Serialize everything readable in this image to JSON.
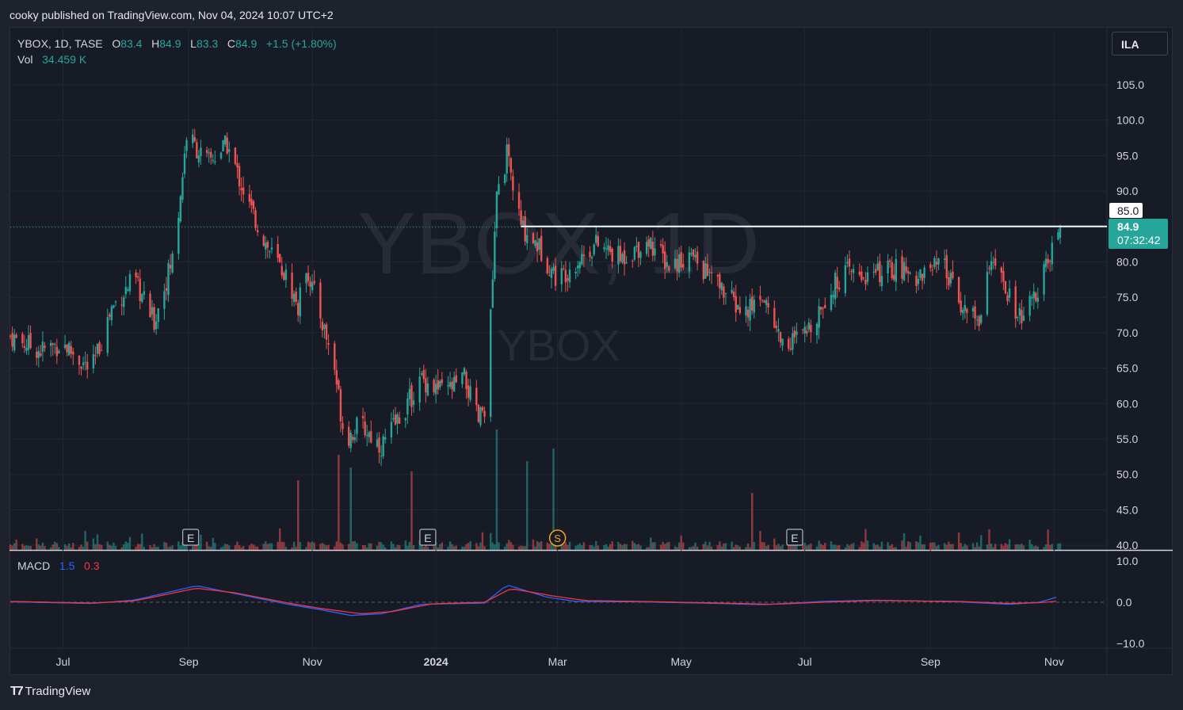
{
  "header": {
    "published": "cooky published on TradingView.com, Nov 04, 2024 10:07 UTC+2"
  },
  "legend": {
    "symbol": "YBOX, 1D, TASE",
    "open_label": "O",
    "open": "83.4",
    "high_label": "H",
    "high": "84.9",
    "low_label": "L",
    "low": "83.3",
    "close_label": "C",
    "close": "84.9",
    "change": "+1.5 (+1.80%)",
    "vol_label": "Vol",
    "vol": "34.459 K"
  },
  "currency": "ILA",
  "watermark": {
    "main": "YBOX, 1D",
    "sub": "YBOX"
  },
  "price_badges": {
    "line_label": "85.0",
    "last": "84.9",
    "countdown": "07:32:42"
  },
  "macd_legend": {
    "label": "MACD",
    "macd": "1.5",
    "signal": "0.3"
  },
  "events": [
    "E",
    "E",
    "S",
    "E"
  ],
  "footer": {
    "brand": "TradingView"
  },
  "colors": {
    "up": "#26a69a",
    "down": "#ef5350",
    "macd": "#2962ff",
    "signal": "#f23645",
    "bg": "#171b26"
  },
  "chart_data": {
    "type": "candlestick",
    "y_ticks": [
      "105.0",
      "100.0",
      "95.0",
      "90.0",
      "85.0",
      "80.0",
      "75.0",
      "70.0",
      "65.0",
      "60.0",
      "55.0",
      "50.0",
      "45.0",
      "40.0"
    ],
    "macd_ticks": [
      "10.0",
      "0.0",
      "−10.0"
    ],
    "x_ticks": [
      "Jul",
      "Sep",
      "Nov",
      "2024",
      "Mar",
      "May",
      "Jul",
      "Sep",
      "Nov"
    ],
    "horizontal_line": 85.0,
    "price_range": [
      40,
      107
    ],
    "series": [
      {
        "name": "price_path",
        "points": [
          [
            "2023-06-05",
            69.5
          ],
          [
            "2023-06-20",
            67.5
          ],
          [
            "2023-07-01",
            68.5
          ],
          [
            "2023-07-15",
            64.5
          ],
          [
            "2023-07-25",
            73.5
          ],
          [
            "2023-08-05",
            77.5
          ],
          [
            "2023-08-15",
            71.5
          ],
          [
            "2023-08-25",
            81.5
          ],
          [
            "2023-08-31",
            98.0
          ],
          [
            "2023-09-10",
            94.0
          ],
          [
            "2023-09-20",
            96.5
          ],
          [
            "2023-09-30",
            88.5
          ],
          [
            "2023-10-10",
            82.0
          ],
          [
            "2023-10-20",
            77.5
          ],
          [
            "2023-10-25",
            73.5
          ],
          [
            "2023-10-29",
            79.5
          ],
          [
            "2023-11-05",
            72.5
          ],
          [
            "2023-11-12",
            65.0
          ],
          [
            "2023-11-17",
            55.0
          ],
          [
            "2023-11-25",
            57.0
          ],
          [
            "2023-12-05",
            54.0
          ],
          [
            "2023-12-15",
            58.5
          ],
          [
            "2023-12-25",
            63.5
          ],
          [
            "2024-01-05",
            61.5
          ],
          [
            "2024-01-15",
            63.5
          ],
          [
            "2024-01-22",
            57.5
          ],
          [
            "2024-01-26",
            60.5
          ],
          [
            "2024-01-31",
            89.0
          ],
          [
            "2024-02-05",
            95.0
          ],
          [
            "2024-02-12",
            85.0
          ],
          [
            "2024-02-20",
            82.5
          ],
          [
            "2024-03-01",
            77.5
          ],
          [
            "2024-03-10",
            80.0
          ],
          [
            "2024-03-20",
            82.5
          ],
          [
            "2024-04-01",
            80.5
          ],
          [
            "2024-04-15",
            83.0
          ],
          [
            "2024-04-25",
            79.5
          ],
          [
            "2024-05-05",
            81.0
          ],
          [
            "2024-05-20",
            76.5
          ],
          [
            "2024-06-01",
            72.5
          ],
          [
            "2024-06-10",
            75.5
          ],
          [
            "2024-06-20",
            68.5
          ],
          [
            "2024-07-01",
            69.5
          ],
          [
            "2024-07-10",
            74.5
          ],
          [
            "2024-07-20",
            78.5
          ],
          [
            "2024-08-01",
            78.0
          ],
          [
            "2024-08-15",
            79.0
          ],
          [
            "2024-08-25",
            78.0
          ],
          [
            "2024-09-07",
            79.5
          ],
          [
            "2024-09-15",
            74.5
          ],
          [
            "2024-09-25",
            71.5
          ],
          [
            "2024-09-30",
            80.5
          ],
          [
            "2024-10-07",
            76.5
          ],
          [
            "2024-10-15",
            72.0
          ],
          [
            "2024-10-22",
            74.5
          ],
          [
            "2024-10-28",
            79.0
          ],
          [
            "2024-11-04",
            84.9
          ]
        ]
      },
      {
        "name": "MACD",
        "points": [
          [
            "2023-06-05",
            0.1
          ],
          [
            "2023-07-15",
            -0.3
          ],
          [
            "2023-08-05",
            0.5
          ],
          [
            "2023-09-05",
            4.0
          ],
          [
            "2023-09-25",
            2.0
          ],
          [
            "2023-10-20",
            -0.5
          ],
          [
            "2023-11-05",
            -1.8
          ],
          [
            "2023-11-20",
            -3.2
          ],
          [
            "2023-12-05",
            -2.8
          ],
          [
            "2023-12-25",
            -0.5
          ],
          [
            "2024-01-25",
            -0.2
          ],
          [
            "2024-02-05",
            4.2
          ],
          [
            "2024-02-25",
            1.2
          ],
          [
            "2024-03-10",
            0.2
          ],
          [
            "2024-04-10",
            0.1
          ],
          [
            "2024-05-20",
            -0.3
          ],
          [
            "2024-06-10",
            -0.6
          ],
          [
            "2024-07-10",
            0.2
          ],
          [
            "2024-08-05",
            0.5
          ],
          [
            "2024-09-15",
            0.1
          ],
          [
            "2024-10-10",
            -0.5
          ],
          [
            "2024-10-25",
            0.0
          ],
          [
            "2024-11-04",
            1.5
          ]
        ]
      },
      {
        "name": "Signal",
        "points": [
          [
            "2023-06-05",
            0.2
          ],
          [
            "2023-07-15",
            -0.2
          ],
          [
            "2023-08-05",
            0.3
          ],
          [
            "2023-09-05",
            3.4
          ],
          [
            "2023-09-25",
            2.2
          ],
          [
            "2023-10-20",
            -0.2
          ],
          [
            "2023-11-05",
            -1.5
          ],
          [
            "2023-11-25",
            -2.8
          ],
          [
            "2023-12-10",
            -2.3
          ],
          [
            "2023-12-30",
            -0.4
          ],
          [
            "2024-01-25",
            0.0
          ],
          [
            "2024-02-07",
            3.3
          ],
          [
            "2024-02-28",
            1.5
          ],
          [
            "2024-03-15",
            0.4
          ],
          [
            "2024-04-10",
            0.2
          ],
          [
            "2024-05-20",
            -0.2
          ],
          [
            "2024-06-15",
            -0.5
          ],
          [
            "2024-07-15",
            0.1
          ],
          [
            "2024-08-05",
            0.4
          ],
          [
            "2024-09-15",
            0.2
          ],
          [
            "2024-10-10",
            -0.3
          ],
          [
            "2024-10-25",
            -0.1
          ],
          [
            "2024-11-04",
            0.3
          ]
        ]
      }
    ],
    "volume_peaks": [
      [
        "2023-10-25",
        0.55
      ],
      [
        "2023-11-14",
        0.75
      ],
      [
        "2023-11-20",
        0.65
      ],
      [
        "2024-01-12",
        0.6
      ],
      [
        "2024-01-20",
        0.55
      ],
      [
        "2024-01-31",
        0.95
      ],
      [
        "2024-02-15",
        0.7
      ],
      [
        "2024-02-28",
        0.8
      ],
      [
        "2024-06-05",
        0.45
      ],
      [
        "2023-12-20",
        0.62
      ]
    ],
    "event_markers": [
      {
        "label": "E",
        "date": "2023-09-02"
      },
      {
        "label": "E",
        "date": "2023-12-28"
      },
      {
        "label": "S",
        "date": "2024-03-01"
      },
      {
        "label": "E",
        "date": "2024-06-26"
      }
    ]
  }
}
